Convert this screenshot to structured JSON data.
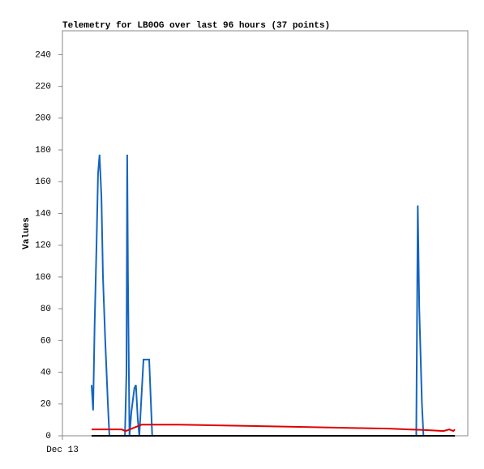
{
  "chart_data": {
    "type": "line",
    "title": "Telemetry for LB0OG over last 96 hours (37 points)",
    "y_label": "Values",
    "xlim": [
      0,
      107
    ],
    "xticks": [
      {
        "value": 0,
        "label": "Dec 13"
      }
    ],
    "ylim": [
      0,
      255
    ],
    "yticks": [
      0,
      20,
      40,
      60,
      80,
      100,
      120,
      140,
      160,
      180,
      200,
      220,
      240
    ],
    "grid": false,
    "series": [
      {
        "color": "#1565c0",
        "x": [
          7.7,
          8.1,
          8.5,
          9.0,
          9.4,
          9.8,
          10.3,
          10.7,
          11.3,
          12.0,
          12.4,
          16.5,
          16.9,
          17.1,
          17.3,
          17.7,
          18.2,
          19.0,
          19.4,
          19.9,
          20.3,
          21.4,
          22.9,
          23.7,
          93.4,
          93.8,
          94.2,
          94.9,
          95.3,
          103.6
        ],
        "values": [
          32,
          16,
          70,
          120,
          165,
          177,
          150,
          100,
          60,
          20,
          0,
          0,
          40,
          177,
          100,
          0,
          15,
          30,
          32,
          10,
          0,
          48,
          48,
          0,
          0,
          145,
          80,
          20,
          0,
          0
        ]
      },
      {
        "color": "#e00000",
        "x": [
          7.7,
          15.6,
          16.7,
          18.8,
          20.9,
          30.6,
          42.3,
          54.1,
          75.4,
          86.1,
          96.8,
          100.6,
          102.1,
          103.2,
          103.6
        ],
        "values": [
          4,
          4,
          3,
          5,
          7,
          7,
          6.5,
          6,
          5,
          4.5,
          3.5,
          3,
          4,
          3,
          4
        ]
      },
      {
        "color": "#000000",
        "x": [
          7.7,
          103.6
        ],
        "values": [
          0,
          0
        ]
      }
    ]
  }
}
